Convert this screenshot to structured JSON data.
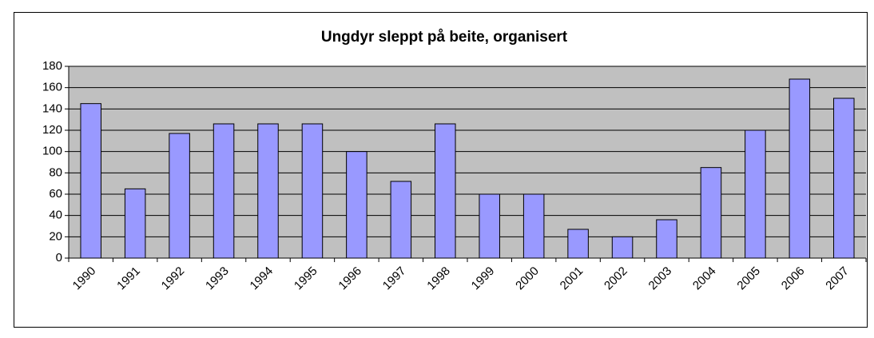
{
  "chart_data": {
    "type": "bar",
    "title": "Ungdyr sleppt på beite, organisert",
    "categories": [
      "1990",
      "1991",
      "1992",
      "1993",
      "1994",
      "1995",
      "1996",
      "1997",
      "1998",
      "1999",
      "2000",
      "2001",
      "2002",
      "2003",
      "2004",
      "2005",
      "2006",
      "2007"
    ],
    "values": [
      145,
      65,
      117,
      126,
      126,
      126,
      100,
      72,
      126,
      60,
      60,
      27,
      20,
      36,
      85,
      120,
      168,
      150
    ],
    "color": "#9999ff",
    "plot_background": "#c0c0c0",
    "ylim": [
      0,
      180
    ],
    "yticks": [
      0,
      20,
      40,
      60,
      80,
      100,
      120,
      140,
      160,
      180
    ],
    "grid": true
  }
}
